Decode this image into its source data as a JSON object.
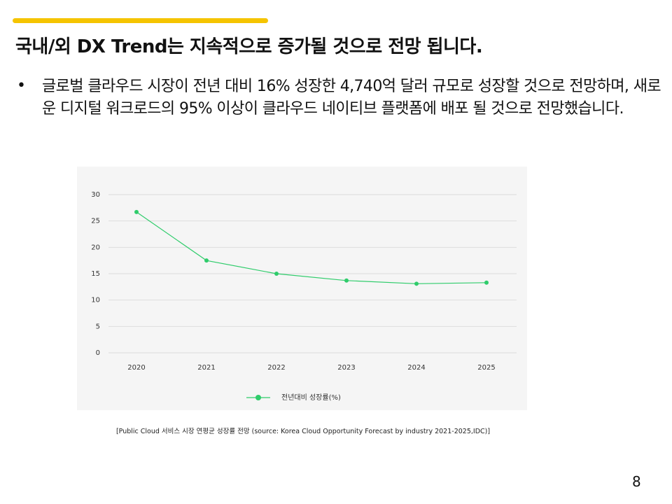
{
  "header": {
    "title": "국내/외 DX Trend는 지속적으로 증가될 것으로 전망 됩니다."
  },
  "bullets": [
    "글로벌 클라우드 시장이 전년 대비 16% 성장한 4,740억 달러 규모로 성장할 것으로 전망하며, 새로운 디지털 워크로드의 95% 이상이 클라우드 네이티브 플랫폼에 배포 될 것으로 전망했습니다."
  ],
  "chart_data": {
    "type": "line",
    "categories": [
      "2020",
      "2021",
      "2022",
      "2023",
      "2024",
      "2025"
    ],
    "series": [
      {
        "name": "전년대비 성장률(%)",
        "color": "#2fcc6b",
        "values": [
          26.7,
          17.5,
          15.0,
          13.7,
          13.1,
          13.3
        ]
      }
    ],
    "ylim": [
      0,
      30
    ],
    "yticks": [
      0,
      5,
      10,
      15,
      20,
      25,
      30
    ],
    "grid": true,
    "legend": "bottom"
  },
  "caption": "[Public Cloud 서비스 시장 연평균 성장률 전망 (source: Korea Cloud Opportunity Forecast by industry 2021-2025,IDC)]",
  "page_number": "8"
}
